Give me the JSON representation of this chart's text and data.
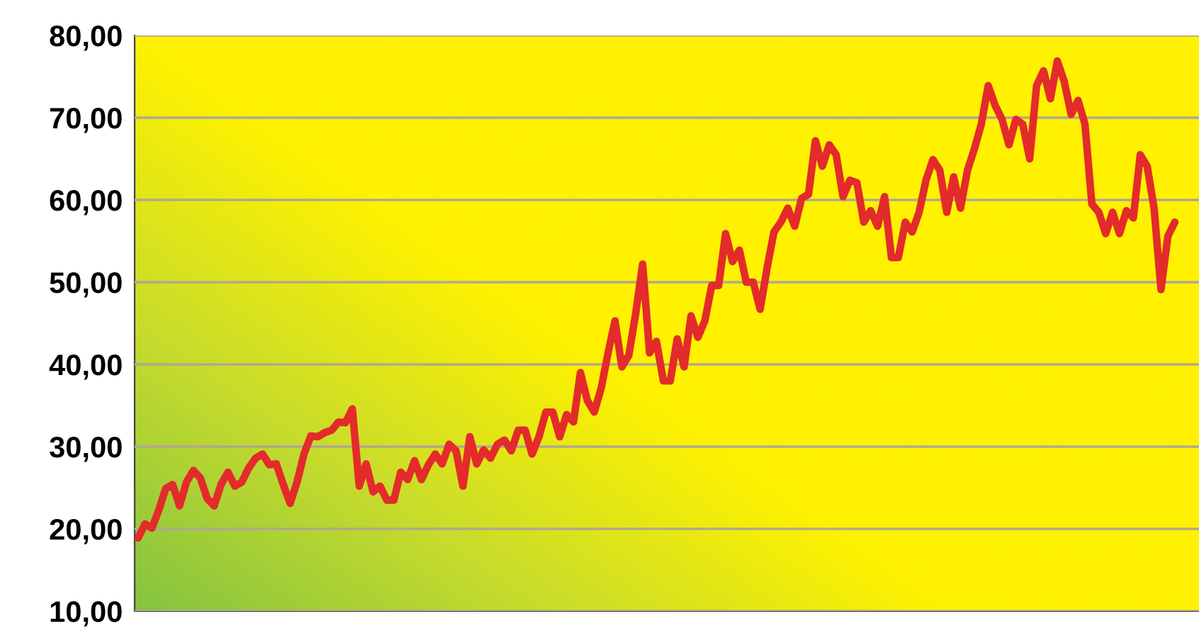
{
  "chart_data": {
    "type": "line",
    "categories": [
      null,
      null,
      null,
      null,
      null,
      null,
      null,
      null,
      null,
      null,
      null,
      null,
      null,
      null,
      null,
      null,
      null,
      null,
      null,
      null,
      null,
      null,
      null,
      null,
      null,
      null,
      null,
      null,
      null,
      null,
      null,
      null,
      null,
      null,
      null,
      null,
      null,
      null,
      null,
      null,
      null,
      null,
      null,
      null,
      null,
      null,
      null,
      null,
      null,
      null,
      null,
      null,
      null,
      null,
      null,
      null,
      null,
      null,
      null,
      null,
      null,
      null,
      null,
      null,
      null,
      null,
      null,
      null,
      null,
      null,
      null,
      null,
      null,
      null,
      null,
      null,
      null,
      null,
      null,
      null,
      null,
      null,
      null,
      null,
      null,
      null,
      null,
      null,
      null,
      null,
      null,
      null,
      null,
      null,
      null,
      null,
      null,
      null,
      null,
      null,
      null,
      null,
      null,
      null,
      null,
      null,
      null,
      null,
      null,
      null,
      null,
      null,
      null,
      null,
      null,
      null,
      null,
      null,
      null,
      null,
      null,
      null,
      null,
      null,
      null,
      null,
      null,
      null,
      null,
      null,
      null,
      null,
      null,
      null,
      null,
      null,
      null,
      null,
      null,
      null,
      null,
      null,
      null,
      null,
      null,
      null,
      null,
      null,
      null,
      null,
      null,
      null,
      null,
      null
    ],
    "series": [
      {
        "color": "#e32b2b",
        "values": [
          18.9,
          20.6,
          20.1,
          22.3,
          24.9,
          25.4,
          22.8,
          25.7,
          27.1,
          26.2,
          23.7,
          22.8,
          25.4,
          26.9,
          25.2,
          25.7,
          27.4,
          28.6,
          29.1,
          27.8,
          27.9,
          25.4,
          23.1,
          25.7,
          29.1,
          31.3,
          31.2,
          31.7,
          32.0,
          33.0,
          32.9,
          34.6,
          25.2,
          27.9,
          24.5,
          25.2,
          23.5,
          23.5,
          26.9,
          26.0,
          28.3,
          26.0,
          27.8,
          29.1,
          27.9,
          30.3,
          29.5,
          25.2,
          31.2,
          27.9,
          29.6,
          28.6,
          30.3,
          30.8,
          29.5,
          32.0,
          32.0,
          29.1,
          31.2,
          34.2,
          34.2,
          31.2,
          33.9,
          33.0,
          39.0,
          35.6,
          34.2,
          37.1,
          41.4,
          45.3,
          39.7,
          41.1,
          46.2,
          52.2,
          41.4,
          42.8,
          38.0,
          38.0,
          43.1,
          39.7,
          45.9,
          43.3,
          45.3,
          49.6,
          49.6,
          55.9,
          52.5,
          53.9,
          50.0,
          50.0,
          46.7,
          51.7,
          56.1,
          57.3,
          59.0,
          56.8,
          60.2,
          60.7,
          67.2,
          64.1,
          66.7,
          65.5,
          60.4,
          62.4,
          62.1,
          57.3,
          58.7,
          56.8,
          60.4,
          53.0,
          53.0,
          57.3,
          56.1,
          58.5,
          62.4,
          64.9,
          63.6,
          58.5,
          62.8,
          59.0,
          63.6,
          66.2,
          69.2,
          73.9,
          71.5,
          69.8,
          66.7,
          69.8,
          69.2,
          65.0,
          73.9,
          75.7,
          72.3,
          76.9,
          74.4,
          70.4,
          72.1,
          69.2,
          59.5,
          58.5,
          55.9,
          58.5,
          55.9,
          58.7,
          57.8,
          65.5,
          64.1,
          59.0,
          49.1,
          55.6,
          57.3,
          null,
          null,
          null
        ]
      }
    ],
    "ylim": [
      10,
      80
    ],
    "yticks": [
      {
        "value": 10,
        "label": "10,00"
      },
      {
        "value": 20,
        "label": "20,00"
      },
      {
        "value": 30,
        "label": "30,00"
      },
      {
        "value": 40,
        "label": "40,00"
      },
      {
        "value": 50,
        "label": "50,00"
      },
      {
        "value": 60,
        "label": "60,00"
      },
      {
        "value": 70,
        "label": "70,00"
      },
      {
        "value": 80,
        "label": "80,00"
      }
    ],
    "grid": "y",
    "legend": false,
    "marker": "none",
    "line_style": "solid",
    "tick_labels": "y"
  }
}
